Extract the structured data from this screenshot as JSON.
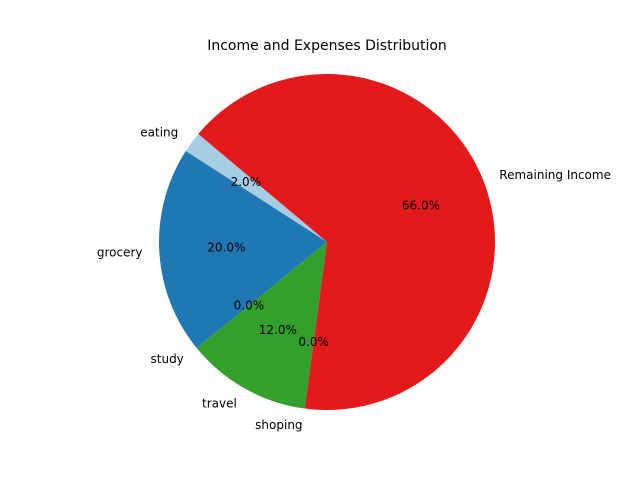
{
  "chart_data": {
    "type": "pie",
    "title": "Income and Expenses Distribution",
    "start_angle": 140,
    "direction": "counterclockwise",
    "slices": [
      {
        "label": "eating",
        "value": 2.0,
        "pct_label": "2.0%",
        "color": "#a6cee3"
      },
      {
        "label": "grocery",
        "value": 20.0,
        "pct_label": "20.0%",
        "color": "#1f78b4"
      },
      {
        "label": "study",
        "value": 0.0,
        "pct_label": "0.0%",
        "color": "#b2df8a"
      },
      {
        "label": "travel",
        "value": 12.0,
        "pct_label": "12.0%",
        "color": "#33a02c"
      },
      {
        "label": "shoping",
        "value": 0.0,
        "pct_label": "0.0%",
        "color": "#fb9a99"
      },
      {
        "label": "Remaining Income",
        "value": 66.0,
        "pct_label": "66.0%",
        "color": "#e31a1c"
      }
    ]
  }
}
